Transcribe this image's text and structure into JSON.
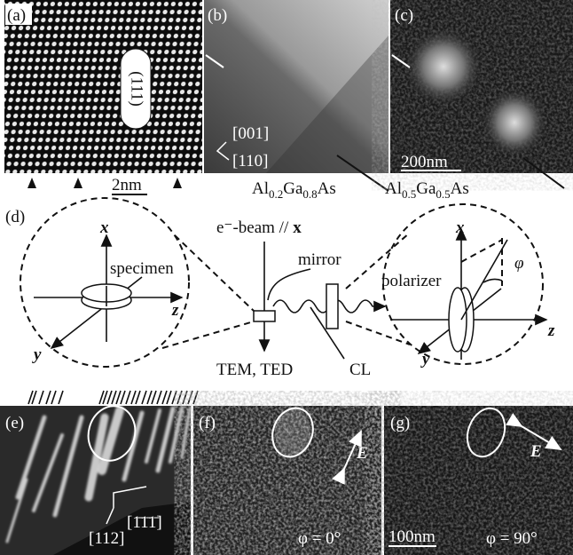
{
  "panels": {
    "a": {
      "label": "(a)",
      "plane": "(111)",
      "scale": "2nm"
    },
    "b": {
      "label": "(b)",
      "dir1": "[001]",
      "dir2": "[110]",
      "material": [
        "Al",
        "0.2",
        "Ga",
        "0.8",
        "As"
      ]
    },
    "c": {
      "label": "(c)",
      "scale": "200nm",
      "material": [
        "Al",
        "0.5",
        "Ga",
        "0.5",
        "As"
      ]
    },
    "d": {
      "label": "(d)",
      "beam": "e⁻-beam //",
      "beam_axis": "x",
      "mirror": "mirror",
      "specimen": "specimen",
      "polarizer": "polarizer",
      "phi": "φ",
      "detectors": "TEM, TED",
      "cl": "CL",
      "axes_left": [
        "x",
        "y",
        "z"
      ],
      "axes_right": [
        "x",
        "y",
        "z"
      ]
    },
    "e": {
      "label": "(e)",
      "dir1": "[112]",
      "dir2": "[1̄1̄1̄]"
    },
    "f": {
      "label": "(f)",
      "field": "E",
      "angle": "φ = 0°"
    },
    "g": {
      "label": "(g)",
      "field": "E",
      "scale": "100nm",
      "angle": "φ = 90°"
    }
  }
}
